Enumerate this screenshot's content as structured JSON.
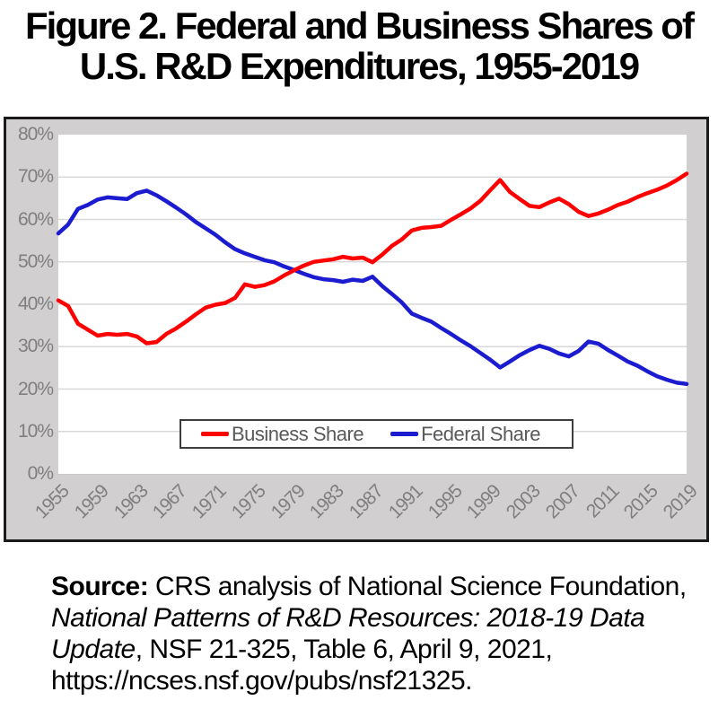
{
  "title": {
    "line1": "Figure 2. Federal and Business Shares of",
    "line2": "U.S. R&D Expenditures, 1955-2019"
  },
  "chart_data": {
    "type": "line",
    "title": "Figure 2. Federal and Business Shares of U.S. R&D Expenditures, 1955-2019",
    "x_label": "",
    "y_label": "",
    "y_axis": {
      "min": 0,
      "max": 80,
      "step": 10,
      "format": "percent"
    },
    "grid": true,
    "legend_position": "inside-bottom-center",
    "years": [
      1955,
      1956,
      1957,
      1958,
      1959,
      1960,
      1961,
      1962,
      1963,
      1964,
      1965,
      1966,
      1967,
      1968,
      1969,
      1970,
      1971,
      1972,
      1973,
      1974,
      1975,
      1976,
      1977,
      1978,
      1979,
      1980,
      1981,
      1982,
      1983,
      1984,
      1985,
      1986,
      1987,
      1988,
      1989,
      1990,
      1991,
      1992,
      1993,
      1994,
      1995,
      1996,
      1997,
      1998,
      1999,
      2000,
      2001,
      2002,
      2003,
      2004,
      2005,
      2006,
      2007,
      2008,
      2009,
      2010,
      2011,
      2012,
      2013,
      2014,
      2015,
      2016,
      2017,
      2018,
      2019
    ],
    "x_tick_labels": [
      "1955",
      "1959",
      "1963",
      "1967",
      "1971",
      "1975",
      "1979",
      "1983",
      "1987",
      "1991",
      "1995",
      "1999",
      "2003",
      "2007",
      "2011",
      "2015",
      "2019"
    ],
    "series": [
      {
        "name": "Business Share",
        "color": "#fe0000",
        "values": [
          40.9,
          39.6,
          35.4,
          34.0,
          32.6,
          33.0,
          32.8,
          33.0,
          32.4,
          30.8,
          31.1,
          33.0,
          34.3,
          35.9,
          37.6,
          39.2,
          39.9,
          40.3,
          41.5,
          44.7,
          44.1,
          44.5,
          45.4,
          46.8,
          48.0,
          49.1,
          50.0,
          50.3,
          50.6,
          51.2,
          50.8,
          51.0,
          49.9,
          51.7,
          53.8,
          55.3,
          57.4,
          58.0,
          58.2,
          58.5,
          59.9,
          61.2,
          62.6,
          64.4,
          66.9,
          69.3,
          66.5,
          64.8,
          63.2,
          62.9,
          64.0,
          64.9,
          63.6,
          61.8,
          60.8,
          61.4,
          62.3,
          63.4,
          64.2,
          65.3,
          66.2,
          67.0,
          68.0,
          69.3,
          70.8
        ]
      },
      {
        "name": "Federal Share",
        "color": "#1b1bd0",
        "values": [
          56.7,
          58.8,
          62.5,
          63.4,
          64.7,
          65.2,
          65.0,
          64.8,
          66.2,
          66.8,
          65.7,
          64.3,
          62.8,
          61.2,
          59.4,
          57.9,
          56.4,
          54.6,
          53.0,
          52.0,
          51.2,
          50.4,
          49.9,
          48.9,
          48.1,
          47.2,
          46.4,
          45.9,
          45.7,
          45.3,
          45.8,
          45.5,
          46.5,
          44.3,
          42.4,
          40.4,
          37.8,
          36.8,
          35.9,
          34.4,
          33.0,
          31.5,
          30.1,
          28.5,
          26.9,
          25.1,
          26.5,
          28.0,
          29.2,
          30.2,
          29.5,
          28.4,
          27.7,
          29.0,
          31.2,
          30.7,
          29.2,
          27.9,
          26.5,
          25.5,
          24.2,
          23.0,
          22.2,
          21.5,
          21.2
        ]
      }
    ]
  },
  "colors": {
    "panel_bg": "#d1cfcf",
    "panel_border": "#1a1a1a",
    "gridline": "#d9d9d9",
    "axis_label": "#7f7f7f",
    "legend_text": "#595959",
    "business_line": "#fe0000",
    "federal_line": "#1b1bd0"
  },
  "source": {
    "segments": [
      {
        "text": "Source:",
        "bold": true
      },
      {
        "text": " CRS analysis of National Science Foundation, "
      },
      {
        "text": "National Patterns of R&D Resources: 2018-19 Data Update",
        "italic": true
      },
      {
        "text": ", NSF 21-325, Table 6, April 9, 2021, https://ncses.nsf.gov/pubs/nsf21325."
      }
    ]
  }
}
